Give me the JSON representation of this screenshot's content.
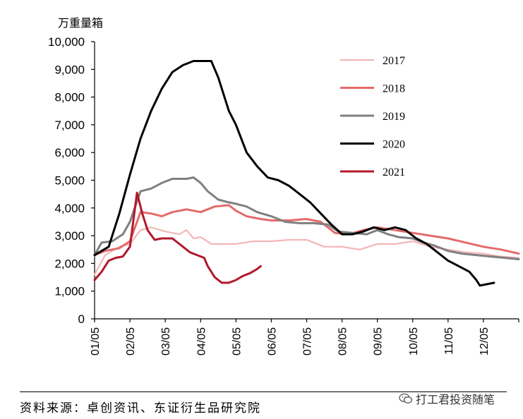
{
  "chart_data": {
    "type": "line",
    "unit_label": "万重量箱",
    "xlim": [
      1,
      13
    ],
    "ylim": [
      0,
      10000
    ],
    "y_ticks": [
      0,
      1000,
      2000,
      3000,
      4000,
      5000,
      6000,
      7000,
      8000,
      9000,
      10000
    ],
    "y_tick_labels": [
      "0",
      "1,000",
      "2,000",
      "3,000",
      "4,000",
      "5,000",
      "6,000",
      "7,000",
      "8,000",
      "9,000",
      "10,000"
    ],
    "x_tick_labels": [
      "01/05",
      "02/05",
      "03/05",
      "04/05",
      "05/05",
      "06/05",
      "07/05",
      "08/05",
      "09/05",
      "10/05",
      "11/05",
      "12/05"
    ],
    "legend_position": "top-right",
    "series": [
      {
        "name": "2017",
        "color": "#f4b6b6",
        "width": 2.2,
        "points": [
          [
            1.0,
            1600
          ],
          [
            1.3,
            2300
          ],
          [
            1.7,
            2600
          ],
          [
            2.0,
            2700
          ],
          [
            2.3,
            3200
          ],
          [
            2.6,
            3300
          ],
          [
            3.0,
            3150
          ],
          [
            3.4,
            3050
          ],
          [
            3.6,
            3200
          ],
          [
            3.8,
            2900
          ],
          [
            4.0,
            2950
          ],
          [
            4.3,
            2700
          ],
          [
            5.0,
            2700
          ],
          [
            5.5,
            2800
          ],
          [
            6.0,
            2800
          ],
          [
            6.5,
            2850
          ],
          [
            7.0,
            2850
          ],
          [
            7.5,
            2600
          ],
          [
            8.0,
            2600
          ],
          [
            8.5,
            2500
          ],
          [
            9.0,
            2700
          ],
          [
            9.5,
            2700
          ],
          [
            10.0,
            2800
          ],
          [
            10.5,
            2600
          ],
          [
            11.0,
            2500
          ],
          [
            11.5,
            2400
          ],
          [
            12.0,
            2350
          ],
          [
            12.5,
            2250
          ],
          [
            13.0,
            2200
          ]
        ]
      },
      {
        "name": "2018",
        "color": "#e46a6a",
        "width": 3.0,
        "points": [
          [
            1.0,
            2300
          ],
          [
            1.3,
            2450
          ],
          [
            1.7,
            2550
          ],
          [
            2.0,
            2800
          ],
          [
            2.3,
            3850
          ],
          [
            2.6,
            3800
          ],
          [
            2.9,
            3700
          ],
          [
            3.2,
            3850
          ],
          [
            3.6,
            3950
          ],
          [
            4.0,
            3850
          ],
          [
            4.4,
            4050
          ],
          [
            4.8,
            4100
          ],
          [
            5.0,
            3900
          ],
          [
            5.3,
            3700
          ],
          [
            5.7,
            3600
          ],
          [
            6.0,
            3550
          ],
          [
            6.5,
            3550
          ],
          [
            7.0,
            3600
          ],
          [
            7.4,
            3500
          ],
          [
            7.8,
            3100
          ],
          [
            8.2,
            3050
          ],
          [
            8.6,
            3200
          ],
          [
            9.0,
            3300
          ],
          [
            9.5,
            3200
          ],
          [
            10.0,
            3100
          ],
          [
            10.5,
            3000
          ],
          [
            11.0,
            2900
          ],
          [
            11.5,
            2750
          ],
          [
            12.0,
            2600
          ],
          [
            12.5,
            2500
          ],
          [
            13.0,
            2350
          ]
        ]
      },
      {
        "name": "2019",
        "color": "#7f7f7f",
        "width": 3.0,
        "points": [
          [
            1.0,
            2300
          ],
          [
            1.2,
            2750
          ],
          [
            1.5,
            2800
          ],
          [
            1.8,
            3050
          ],
          [
            2.0,
            3500
          ],
          [
            2.3,
            4600
          ],
          [
            2.6,
            4700
          ],
          [
            2.9,
            4900
          ],
          [
            3.2,
            5050
          ],
          [
            3.6,
            5050
          ],
          [
            3.8,
            5100
          ],
          [
            4.0,
            4900
          ],
          [
            4.2,
            4600
          ],
          [
            4.5,
            4300
          ],
          [
            4.8,
            4200
          ],
          [
            5.0,
            4150
          ],
          [
            5.3,
            4050
          ],
          [
            5.6,
            3850
          ],
          [
            6.0,
            3700
          ],
          [
            6.4,
            3500
          ],
          [
            6.8,
            3450
          ],
          [
            7.2,
            3450
          ],
          [
            7.6,
            3400
          ],
          [
            7.9,
            3150
          ],
          [
            8.3,
            3100
          ],
          [
            8.7,
            3050
          ],
          [
            9.0,
            3200
          ],
          [
            9.3,
            3050
          ],
          [
            9.6,
            2950
          ],
          [
            10.0,
            2900
          ],
          [
            10.3,
            2750
          ],
          [
            10.6,
            2650
          ],
          [
            11.0,
            2450
          ],
          [
            11.4,
            2350
          ],
          [
            11.8,
            2300
          ],
          [
            12.2,
            2250
          ],
          [
            12.6,
            2200
          ],
          [
            13.0,
            2150
          ]
        ]
      },
      {
        "name": "2020",
        "color": "#000000",
        "width": 3.0,
        "points": [
          [
            1.0,
            2300
          ],
          [
            1.4,
            2600
          ],
          [
            1.7,
            3800
          ],
          [
            2.0,
            5200
          ],
          [
            2.3,
            6500
          ],
          [
            2.6,
            7500
          ],
          [
            2.9,
            8300
          ],
          [
            3.2,
            8900
          ],
          [
            3.5,
            9150
          ],
          [
            3.8,
            9300
          ],
          [
            4.1,
            9300
          ],
          [
            4.3,
            9300
          ],
          [
            4.5,
            8700
          ],
          [
            4.8,
            7500
          ],
          [
            5.0,
            7000
          ],
          [
            5.3,
            6000
          ],
          [
            5.6,
            5500
          ],
          [
            5.9,
            5100
          ],
          [
            6.2,
            5000
          ],
          [
            6.5,
            4800
          ],
          [
            6.8,
            4500
          ],
          [
            7.1,
            4200
          ],
          [
            7.4,
            3800
          ],
          [
            7.7,
            3400
          ],
          [
            8.0,
            3050
          ],
          [
            8.3,
            3050
          ],
          [
            8.6,
            3150
          ],
          [
            8.9,
            3300
          ],
          [
            9.2,
            3200
          ],
          [
            9.5,
            3300
          ],
          [
            9.8,
            3200
          ],
          [
            10.1,
            2900
          ],
          [
            10.4,
            2700
          ],
          [
            10.7,
            2400
          ],
          [
            11.0,
            2100
          ],
          [
            11.3,
            1900
          ],
          [
            11.6,
            1700
          ],
          [
            11.8,
            1400
          ],
          [
            11.9,
            1200
          ],
          [
            12.1,
            1250
          ],
          [
            12.3,
            1300
          ]
        ]
      },
      {
        "name": "2021",
        "color": "#b2182b",
        "width": 3.0,
        "points": [
          [
            1.0,
            1400
          ],
          [
            1.2,
            1700
          ],
          [
            1.4,
            2100
          ],
          [
            1.6,
            2200
          ],
          [
            1.8,
            2250
          ],
          [
            2.0,
            2600
          ],
          [
            2.2,
            4550
          ],
          [
            2.35,
            3800
          ],
          [
            2.5,
            3200
          ],
          [
            2.7,
            2850
          ],
          [
            2.9,
            2900
          ],
          [
            3.2,
            2900
          ],
          [
            3.5,
            2600
          ],
          [
            3.7,
            2400
          ],
          [
            3.9,
            2300
          ],
          [
            4.1,
            2200
          ],
          [
            4.2,
            1900
          ],
          [
            4.4,
            1500
          ],
          [
            4.6,
            1300
          ],
          [
            4.8,
            1300
          ],
          [
            5.0,
            1400
          ],
          [
            5.2,
            1550
          ],
          [
            5.4,
            1650
          ],
          [
            5.6,
            1800
          ],
          [
            5.7,
            1900
          ]
        ]
      }
    ]
  },
  "source_text": "资料来源：卓创资讯、东证衍生品研究院",
  "watermark_text": "打工君投资随笔"
}
